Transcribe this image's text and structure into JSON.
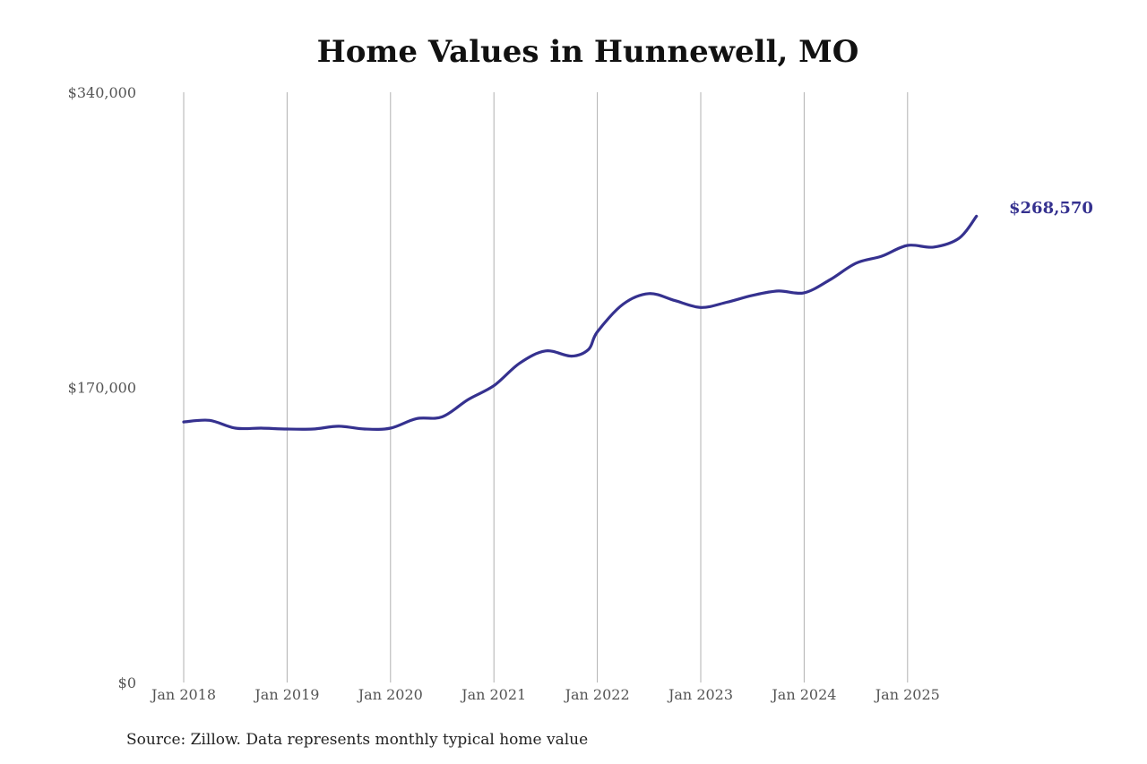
{
  "title": "Home Values in Hunnewell, MO",
  "source": "Source: Zillow. Data represents monthly typical home value",
  "colors": {
    "line": "#35318f",
    "grid": "#b0b0b0",
    "axis_text": "#555555",
    "title": "#111111"
  },
  "end_label": "$268,570",
  "y_ticks": [
    {
      "value": 0,
      "label": "$0"
    },
    {
      "value": 170000,
      "label": "$170,000"
    },
    {
      "value": 340000,
      "label": "$340,000"
    }
  ],
  "x_ticks": [
    "Jan 2018",
    "Jan 2019",
    "Jan 2020",
    "Jan 2021",
    "Jan 2022",
    "Jan 2023",
    "Jan 2024",
    "Jan 2025"
  ],
  "chart_data": {
    "type": "line",
    "title": "Home Values in Hunnewell, MO",
    "xlabel": "",
    "ylabel": "",
    "ylim": [
      0,
      340000
    ],
    "grid": "vertical",
    "legend": "none",
    "x": [
      "2018-01",
      "2018-04",
      "2018-07",
      "2018-10",
      "2019-01",
      "2019-04",
      "2019-07",
      "2019-10",
      "2020-01",
      "2020-04",
      "2020-07",
      "2020-10",
      "2021-01",
      "2021-04",
      "2021-07",
      "2021-10",
      "2021-12",
      "2022-01",
      "2022-04",
      "2022-07",
      "2022-10",
      "2023-01",
      "2023-04",
      "2023-07",
      "2023-10",
      "2024-01",
      "2024-04",
      "2024-07",
      "2024-10",
      "2025-01",
      "2025-04",
      "2025-07",
      "2025-09"
    ],
    "series": [
      {
        "name": "Typical home value",
        "values": [
          150100,
          151000,
          146500,
          146500,
          146000,
          146000,
          147600,
          146000,
          146500,
          152000,
          153000,
          163000,
          171000,
          184000,
          191000,
          188000,
          192000,
          202000,
          218000,
          224000,
          220000,
          216000,
          219000,
          223000,
          225500,
          224500,
          232000,
          241500,
          245600,
          251800,
          250800,
          256000,
          268570
        ]
      }
    ],
    "annotations": [
      {
        "x": "2025-09",
        "text": "$268,570"
      }
    ],
    "source": "Source: Zillow. Data represents monthly typical home value"
  }
}
